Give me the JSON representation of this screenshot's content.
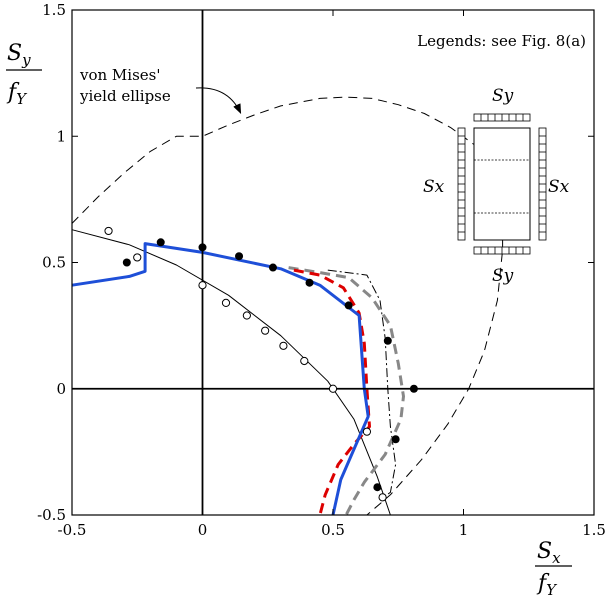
{
  "chart_data": {
    "type": "scatter",
    "xlim": [
      -0.5,
      1.5
    ],
    "ylim": [
      -0.5,
      1.5
    ],
    "xticks": [
      {
        "value": -0.5,
        "label": "-0.5"
      },
      {
        "value": 0,
        "label": "0"
      },
      {
        "value": 0.5,
        "label": "0.5"
      },
      {
        "value": 1,
        "label": "1"
      },
      {
        "value": 1.5,
        "label": "1.5"
      }
    ],
    "yticks": [
      {
        "value": -0.5,
        "label": "-0.5"
      },
      {
        "value": 0,
        "label": "0"
      },
      {
        "value": 0.5,
        "label": "0.5"
      },
      {
        "value": 1,
        "label": "1"
      },
      {
        "value": 1.5,
        "label": "1.5"
      }
    ],
    "xlabel": {
      "num": "S",
      "num_sub": "x",
      "den": "f",
      "den_sub": "Y"
    },
    "ylabel": {
      "num": "S",
      "num_sub": "y",
      "den": "f",
      "den_sub": "Y"
    },
    "legend_note": "Legends: see Fig. 8(a)",
    "annotation": {
      "line1": "von Mises'",
      "line2": "yield ellipse",
      "target": [
        0.15,
        1.08
      ]
    },
    "inset_labels": {
      "top": "Sy",
      "bottom": "Sy",
      "left": "Sx",
      "right": "Sx"
    },
    "series": [
      {
        "style": "dashed-thin",
        "color": "#000000",
        "points": [
          [
            -0.5,
            0.655
          ],
          [
            -0.4,
            0.76
          ],
          [
            -0.3,
            0.855
          ],
          [
            -0.2,
            0.94
          ],
          [
            -0.1,
            1.0
          ],
          [
            0,
            1.0
          ],
          [
            0.1,
            1.045
          ],
          [
            0.2,
            1.085
          ],
          [
            0.3,
            1.12
          ],
          [
            0.45,
            1.15
          ],
          [
            0.55,
            1.155
          ],
          [
            0.65,
            1.15
          ],
          [
            0.75,
            1.125
          ],
          [
            0.85,
            1.09
          ],
          [
            0.95,
            1.035
          ],
          [
            1.05,
            0.96
          ],
          [
            1.12,
            0.88
          ],
          [
            1.15,
            0.79
          ],
          [
            1.15,
            0.55
          ],
          [
            1.13,
            0.35
          ],
          [
            1.08,
            0.15
          ],
          [
            1.02,
            0.0
          ],
          [
            0.94,
            -0.14
          ],
          [
            0.84,
            -0.28
          ],
          [
            0.72,
            -0.42
          ],
          [
            0.63,
            -0.5
          ]
        ]
      },
      {
        "style": "solid-thin",
        "color": "#000000",
        "points": [
          [
            -0.5,
            0.63
          ],
          [
            -0.28,
            0.57
          ],
          [
            -0.1,
            0.49
          ],
          [
            0.1,
            0.37
          ],
          [
            0.3,
            0.21
          ],
          [
            0.48,
            0.03
          ],
          [
            0.58,
            -0.12
          ],
          [
            0.67,
            -0.35
          ],
          [
            0.72,
            -0.5
          ]
        ]
      },
      {
        "style": "dashdot",
        "color": "#000000",
        "points": [
          [
            0.48,
            0.47
          ],
          [
            0.63,
            0.45
          ],
          [
            0.68,
            0.35
          ],
          [
            0.7,
            0.2
          ],
          [
            0.71,
            0.0
          ],
          [
            0.72,
            -0.15
          ],
          [
            0.74,
            -0.3
          ],
          [
            0.72,
            -0.41
          ],
          [
            0.68,
            -0.44
          ]
        ]
      },
      {
        "style": "dashed-thick",
        "color": "#888888",
        "points": [
          [
            0.33,
            0.48
          ],
          [
            0.45,
            0.46
          ],
          [
            0.56,
            0.44
          ],
          [
            0.65,
            0.36
          ],
          [
            0.72,
            0.25
          ],
          [
            0.75,
            0.1
          ],
          [
            0.77,
            -0.03
          ],
          [
            0.76,
            -0.12
          ],
          [
            0.7,
            -0.26
          ],
          [
            0.62,
            -0.37
          ],
          [
            0.58,
            -0.44
          ],
          [
            0.55,
            -0.5
          ]
        ]
      },
      {
        "style": "dashed-thick",
        "color": "#dd0000",
        "points": [
          [
            0.35,
            0.47
          ],
          [
            0.45,
            0.45
          ],
          [
            0.54,
            0.4
          ],
          [
            0.6,
            0.3
          ],
          [
            0.62,
            0.18
          ],
          [
            0.63,
            0.0
          ],
          [
            0.64,
            -0.15
          ],
          [
            0.58,
            -0.22
          ],
          [
            0.52,
            -0.3
          ],
          [
            0.47,
            -0.42
          ],
          [
            0.45,
            -0.5
          ]
        ]
      },
      {
        "style": "solid-thick",
        "color": "#1e4fd8",
        "points": [
          [
            -0.5,
            0.41
          ],
          [
            -0.28,
            0.445
          ],
          [
            -0.22,
            0.465
          ],
          [
            -0.22,
            0.575
          ],
          [
            0.0,
            0.54
          ],
          [
            0.3,
            0.475
          ],
          [
            0.45,
            0.41
          ],
          [
            0.6,
            0.29
          ],
          [
            0.62,
            0.0
          ],
          [
            0.635,
            -0.11
          ],
          [
            0.58,
            -0.24
          ],
          [
            0.53,
            -0.36
          ],
          [
            0.5,
            -0.5
          ]
        ]
      }
    ],
    "markers_filled": [
      [
        -0.29,
        0.5
      ],
      [
        -0.16,
        0.58
      ],
      [
        0.0,
        0.56
      ],
      [
        0.14,
        0.525
      ],
      [
        0.27,
        0.48
      ],
      [
        0.41,
        0.42
      ],
      [
        0.56,
        0.33
      ],
      [
        0.71,
        0.19
      ],
      [
        0.81,
        0.0
      ],
      [
        0.74,
        -0.2
      ],
      [
        0.67,
        -0.39
      ]
    ],
    "markers_open": [
      [
        -0.36,
        0.625
      ],
      [
        -0.25,
        0.52
      ],
      [
        0.0,
        0.41
      ],
      [
        0.09,
        0.34
      ],
      [
        0.17,
        0.29
      ],
      [
        0.24,
        0.23
      ],
      [
        0.31,
        0.17
      ],
      [
        0.39,
        0.11
      ],
      [
        0.5,
        0.0
      ],
      [
        0.63,
        -0.17
      ],
      [
        0.69,
        -0.43
      ]
    ]
  }
}
